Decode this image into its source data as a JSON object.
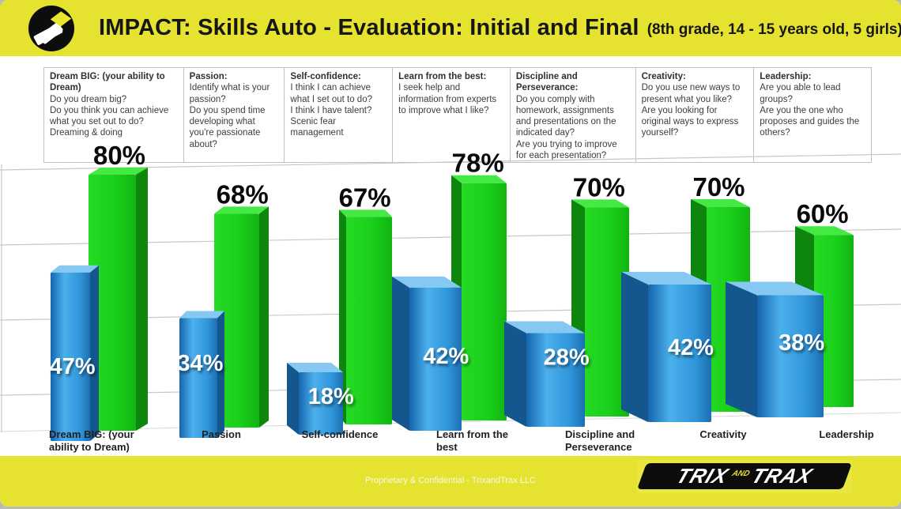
{
  "header": {
    "title_main": "IMPACT: Skills Auto - Evaluation: Initial and Final",
    "title_note": "(8th grade, 14 - 15 years old, 5 girls)"
  },
  "skills_table": {
    "columns": [
      {
        "header": "Dream BIG: (your ability to Dream)",
        "questions": [
          "Do you dream big?",
          "Do you think you can achieve what you set out to do?",
          "Dreaming & doing"
        ]
      },
      {
        "header": "Passion:",
        "questions": [
          "Identify what is your passion?",
          "Do you spend time developing what you're passionate about?"
        ]
      },
      {
        "header": "Self-confidence:",
        "questions": [
          "I think I can achieve what I set out to do?",
          "I think I have talent?",
          "Scenic fear management"
        ]
      },
      {
        "header": "Learn from the best:",
        "questions": [
          "I seek help and information from experts to improve what I like?"
        ]
      },
      {
        "header": "Discipline and Perseverance:",
        "questions": [
          "Do you comply with homework, assignments and presentations on the indicated day?",
          "Are you trying to improve for each presentation?"
        ]
      },
      {
        "header": "Creativity:",
        "questions": [
          "Do you use new ways to present what you like?",
          "Are you looking for original ways to express yourself?"
        ]
      },
      {
        "header": "Leadership:",
        "questions": [
          "Are you able to lead groups?",
          "Are you the one who proposes and guides the others?"
        ]
      }
    ]
  },
  "chart_data": {
    "type": "bar",
    "title": "IMPACT: Skills Auto - Evaluation: Initial and Final (8th grade, 14 - 15 years old, 5 girls)",
    "categories": [
      "Dream BIG: (your ability to Dream)",
      "Passion",
      "Self-confidence",
      "Learn from the best",
      "Discipline and Perseverance",
      "Creativity",
      "Leadership"
    ],
    "tick_lines": [
      [
        "Dream BIG: (your",
        "ability to Dream)"
      ],
      [
        "Passion"
      ],
      [
        "Self-confidence"
      ],
      [
        "Learn from the",
        "best"
      ],
      [
        "Discipline and",
        "Perseverance"
      ],
      [
        "Creativity"
      ],
      [
        "Leadership"
      ]
    ],
    "series": [
      {
        "name": "Initial",
        "color": "#2e97dd",
        "values": [
          47,
          34,
          18,
          42,
          28,
          42,
          38
        ]
      },
      {
        "name": "Final",
        "color": "#1ed01e",
        "values": [
          80,
          68,
          67,
          78,
          70,
          70,
          60
        ]
      }
    ],
    "value_suffix": "%",
    "ylim": [
      0,
      100
    ],
    "gridlines": [
      20,
      40,
      60,
      80
    ],
    "legend": "none",
    "style": "3d-perspective"
  },
  "footer": {
    "note": "Proprietary & Confidential - TrixandTrax LLC",
    "wordmark": [
      "TRIX",
      "AND",
      "TRAX"
    ]
  },
  "colors": {
    "band_yellow": "#e5e230",
    "initial_blue": "#2e97dd",
    "final_green": "#1ed01e",
    "gridline_gray": "#c8c8c8",
    "banner_black": "#0c0c0c"
  }
}
